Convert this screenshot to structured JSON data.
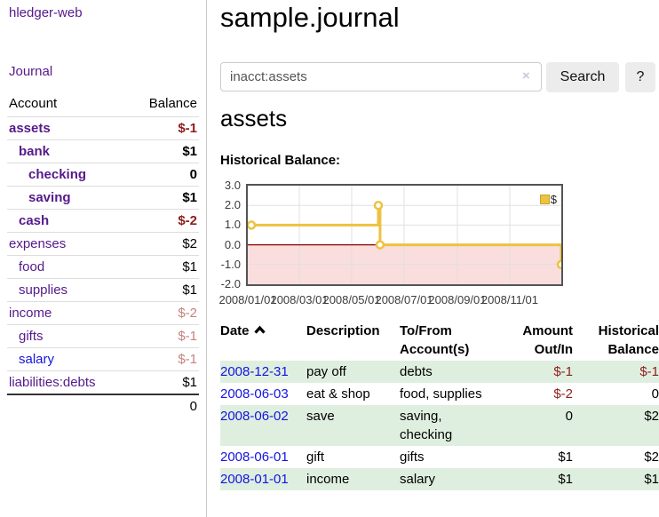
{
  "app": {
    "title": "hledger-web",
    "nav_journal": "Journal"
  },
  "sidebar": {
    "accounts_header": {
      "account": "Account",
      "balance": "Balance"
    },
    "accounts": [
      {
        "name": "assets",
        "level": 0,
        "bold": true,
        "balance": "$-1",
        "balance_style": "neg"
      },
      {
        "name": "bank",
        "level": 1,
        "bold": true,
        "balance": "$1",
        "balance_style": "pos"
      },
      {
        "name": "checking",
        "level": 2,
        "bold": true,
        "balance": "0",
        "balance_style": "pos"
      },
      {
        "name": "saving",
        "level": 2,
        "bold": true,
        "balance": "$1",
        "balance_style": "pos"
      },
      {
        "name": "cash",
        "level": 1,
        "bold": true,
        "balance": "$-2",
        "balance_style": "neg"
      },
      {
        "name": "expenses",
        "level": 0,
        "bold": false,
        "balance": "$2",
        "balance_style": "pos"
      },
      {
        "name": "food",
        "level": 1,
        "bold": false,
        "balance": "$1",
        "balance_style": "pos"
      },
      {
        "name": "supplies",
        "level": 1,
        "bold": false,
        "balance": "$1",
        "balance_style": "pos"
      },
      {
        "name": "income",
        "level": 0,
        "bold": false,
        "balance": "$-2",
        "balance_style": "neg-faded"
      },
      {
        "name": "gifts",
        "level": 1,
        "bold": false,
        "balance": "$-1",
        "balance_style": "neg-faded"
      },
      {
        "name": "salary",
        "level": 1,
        "bold": false,
        "link_style": "blue",
        "balance": "$-1",
        "balance_style": "neg-faded"
      },
      {
        "name": "liabilities:debts",
        "level": 0,
        "bold": false,
        "balance": "$1",
        "balance_style": "pos"
      }
    ],
    "total": "0"
  },
  "header": {
    "title": "sample.journal"
  },
  "search": {
    "value": "inacct:assets",
    "clear_icon": "×",
    "button_label": "Search",
    "help_label": "?"
  },
  "register": {
    "heading": "assets",
    "chart_label": "Historical Balance:"
  },
  "chart_data": {
    "type": "line",
    "step": true,
    "title": "Historical Balance:",
    "series": [
      {
        "name": "$",
        "color": "#edc240",
        "points": [
          [
            "2008/01/01",
            1
          ],
          [
            "2008/06/01",
            2
          ],
          [
            "2008/06/03",
            0
          ],
          [
            "2008/12/31",
            -1
          ]
        ]
      }
    ],
    "x_range": [
      "2008/01/01",
      "2008/12/31"
    ],
    "x_ticks": [
      "2008/01/01",
      "2008/03/01",
      "2008/05/01",
      "2008/07/01",
      "2008/09/01",
      "2008/11/01"
    ],
    "y_ticks": [
      "3.0",
      "2.0",
      "1.0",
      "0.0",
      "-1.0",
      "-2.0"
    ],
    "ylim": [
      -2,
      3
    ],
    "grid": true,
    "legend": {
      "label": "$",
      "position": "top-right"
    },
    "zero_line_color": "#8b0000",
    "negative_fill": "#fadddd",
    "grid_color": "#e0e0e0"
  },
  "table": {
    "columns": {
      "date": "Date",
      "description": "Description",
      "accounts": "To/From Account(s)",
      "amount": "Amount Out/In",
      "balance": "Historical Balance"
    },
    "sort": {
      "column": "date",
      "direction": "ascending"
    },
    "rows": [
      {
        "date": "2008-12-31",
        "description": "pay off",
        "accounts": "debts",
        "amount": "$-1",
        "amount_neg": true,
        "balance": "$-1",
        "balance_neg": true
      },
      {
        "date": "2008-06-03",
        "description": "eat & shop",
        "accounts": "food, supplies",
        "amount": "$-2",
        "amount_neg": true,
        "balance": "0",
        "balance_neg": false
      },
      {
        "date": "2008-06-02",
        "description": "save",
        "accounts": "saving,\nchecking",
        "amount": "0",
        "amount_neg": false,
        "balance": "$2",
        "balance_neg": false
      },
      {
        "date": "2008-06-01",
        "description": "gift",
        "accounts": "gifts",
        "amount": "$1",
        "amount_neg": false,
        "balance": "$2",
        "balance_neg": false
      },
      {
        "date": "2008-01-01",
        "description": "income",
        "accounts": "salary",
        "amount": "$1",
        "amount_neg": false,
        "balance": "$1",
        "balance_neg": false
      }
    ]
  },
  "colors": {
    "link_purple": "#551a8b",
    "link_blue": "#1414e0",
    "negative": "#8f1d1d",
    "negative_faded": "#c5827e",
    "row_stripe_green": "#dfefdf",
    "series_yellow": "#edc240"
  }
}
